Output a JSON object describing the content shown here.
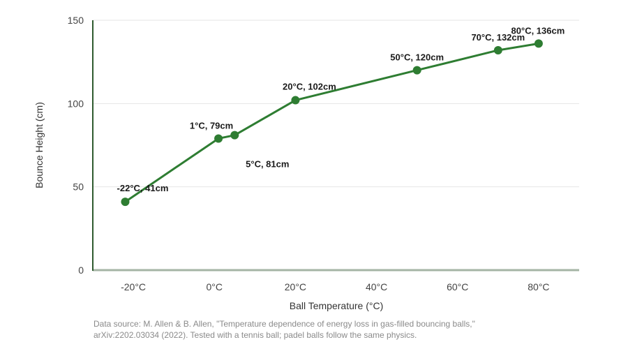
{
  "chart_data": {
    "type": "line",
    "xlabel": "Ball Temperature (°C)",
    "ylabel": "Bounce Height (cm)",
    "xlim": [
      -30,
      90
    ],
    "ylim": [
      0,
      150
    ],
    "x_ticks": [
      -20,
      0,
      20,
      40,
      60,
      80
    ],
    "x_tick_labels": [
      "-20°C",
      "0°C",
      "20°C",
      "40°C",
      "60°C",
      "80°C"
    ],
    "y_ticks": [
      0,
      50,
      100,
      150
    ],
    "y_tick_labels": [
      "0",
      "50",
      "100",
      "150"
    ],
    "grid": "horizontal",
    "series": [
      {
        "color": "#2e7d32",
        "points": [
          {
            "x": -22,
            "y": 41,
            "label": "-22°C, 41cm"
          },
          {
            "x": 1,
            "y": 79,
            "label": "1°C, 79cm"
          },
          {
            "x": 5,
            "y": 81,
            "label": "5°C, 81cm"
          },
          {
            "x": 20,
            "y": 102,
            "label": "20°C, 102cm"
          },
          {
            "x": 50,
            "y": 120,
            "label": "50°C, 120cm"
          },
          {
            "x": 70,
            "y": 132,
            "label": "70°C, 132cm"
          },
          {
            "x": 80,
            "y": 136,
            "label": "80°C, 136cm"
          }
        ]
      }
    ],
    "source_note": "Data source: M. Allen & B. Allen, \"Temperature dependence of energy loss in gas-filled bouncing balls,\" arXiv:2202.03034 (2022). Tested with a tennis ball; padel balls follow the same physics."
  },
  "colors": {
    "line": "#2e7d32",
    "axis": "#a5b4a5",
    "y_axis": "#2e5a2e",
    "grid": "#e6e6e6"
  }
}
